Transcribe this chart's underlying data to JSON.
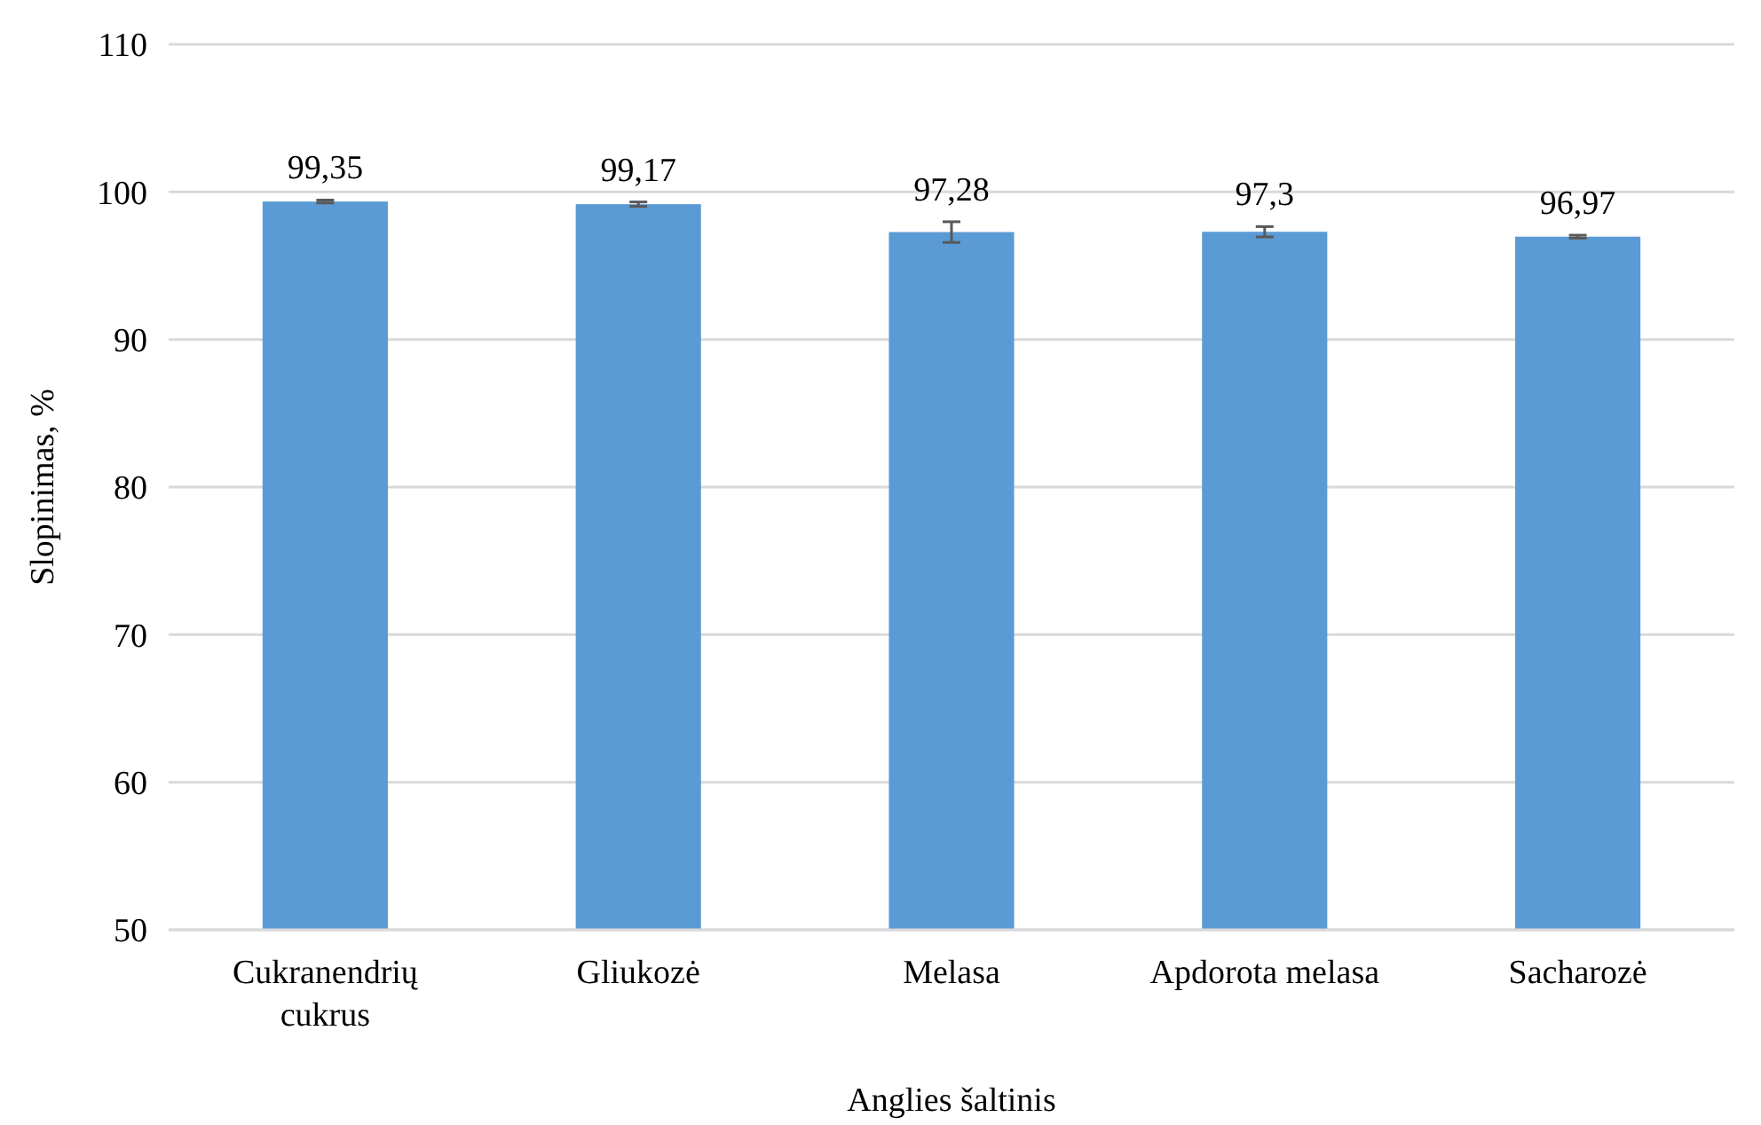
{
  "chart_data": {
    "type": "bar",
    "xlabel": "Anglies šaltinis",
    "ylabel": "Slopinimas, %",
    "categories": [
      "Cukranendrių cukrus",
      "Gliukozė",
      "Melasa",
      "Apdorota melasa",
      "Sacharozė"
    ],
    "values": [
      99.35,
      99.17,
      97.28,
      97.3,
      96.97
    ],
    "errors": [
      0.1,
      0.15,
      0.7,
      0.35,
      0.1
    ],
    "value_labels": [
      "99,35",
      "99,17",
      "97,28",
      "97,3",
      "96,97"
    ],
    "color": "#5b9bd5",
    "ylim": [
      50,
      110
    ],
    "yticks": [
      50,
      60,
      70,
      80,
      90,
      100,
      110
    ],
    "grid": "y"
  }
}
